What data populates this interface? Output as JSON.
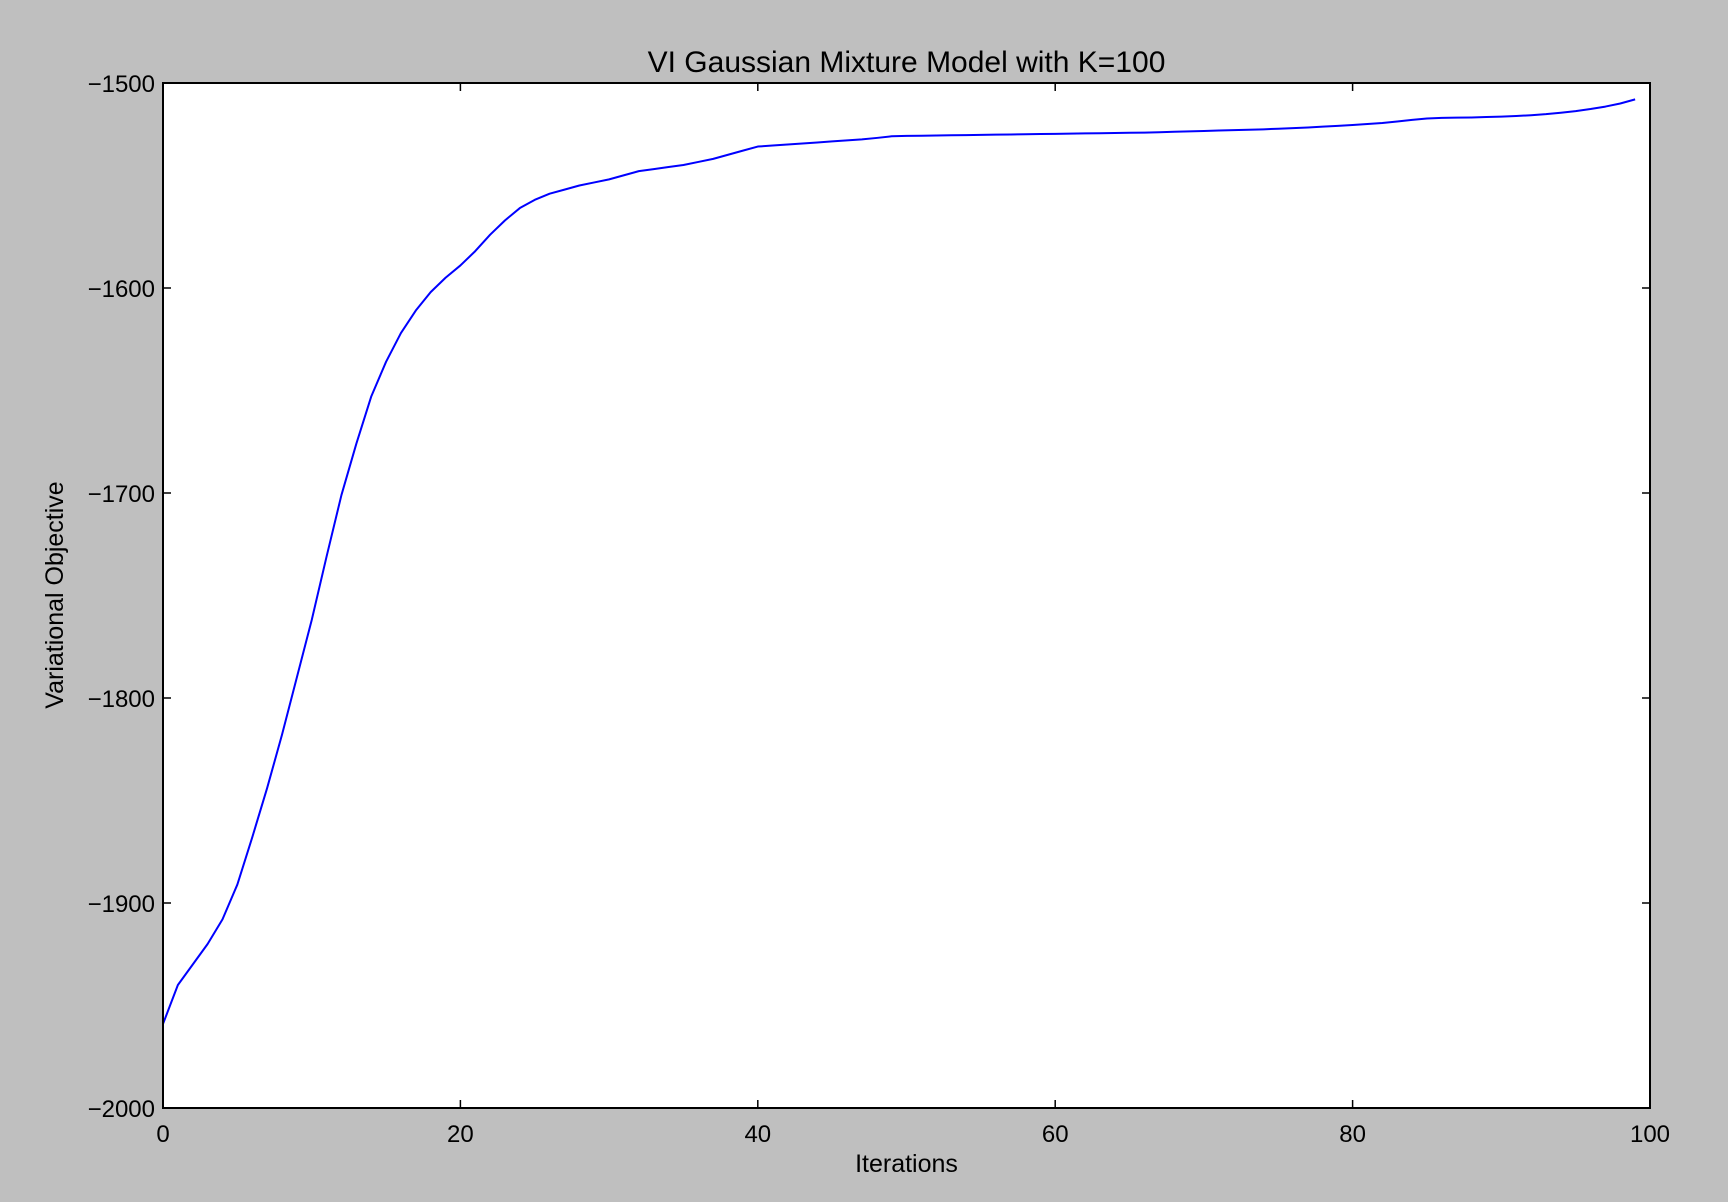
{
  "chart_data": {
    "type": "line",
    "title": "VI Gaussian Mixture Model with K=100",
    "xlabel": "Iterations",
    "ylabel": "Variational Objective",
    "xlim": [
      0,
      100
    ],
    "ylim": [
      -2000,
      -1500
    ],
    "xticks": [
      0,
      20,
      40,
      60,
      80,
      100
    ],
    "xtick_labels": [
      "0",
      "20",
      "40",
      "60",
      "80",
      "100"
    ],
    "yticks": [
      -2000,
      -1900,
      -1800,
      -1700,
      -1600,
      -1500
    ],
    "ytick_labels": [
      "−2000",
      "−1900",
      "−1800",
      "−1700",
      "−1600",
      "−1500"
    ],
    "grid": false,
    "legend": "none",
    "series": [
      {
        "color": "#0000ff",
        "x": [
          0,
          1,
          2,
          3,
          4,
          5,
          6,
          7,
          8,
          9,
          10,
          11,
          12,
          13,
          14,
          15,
          16,
          17,
          18,
          19,
          20,
          21,
          22,
          23,
          24,
          25,
          26,
          27,
          28,
          29,
          30,
          31,
          32,
          33,
          34,
          35,
          36,
          37,
          38,
          39,
          40,
          41,
          42,
          43,
          44,
          45,
          46,
          47,
          48,
          49,
          50,
          51,
          52,
          53,
          54,
          55,
          56,
          57,
          58,
          59,
          60,
          61,
          62,
          63,
          64,
          65,
          66,
          67,
          68,
          69,
          70,
          71,
          72,
          73,
          74,
          75,
          76,
          77,
          78,
          79,
          80,
          81,
          82,
          83,
          84,
          85,
          86,
          87,
          88,
          89,
          90,
          91,
          92,
          93,
          94,
          95,
          96,
          97,
          98,
          99
        ],
        "y": [
          -1959,
          -1940,
          -1930,
          -1920,
          -1908,
          -1891,
          -1868,
          -1844,
          -1818,
          -1790,
          -1762,
          -1731,
          -1701,
          -1676,
          -1653,
          -1636,
          -1622,
          -1611,
          -1602,
          -1595,
          -1589,
          -1582,
          -1574,
          -1567,
          -1561,
          -1557,
          -1554,
          -1552,
          -1550,
          -1548.5,
          -1547,
          -1545,
          -1543,
          -1542,
          -1541,
          -1540,
          -1538.5,
          -1537,
          -1535,
          -1533,
          -1531,
          -1530.5,
          -1530,
          -1529.5,
          -1529,
          -1528.5,
          -1528,
          -1527.5,
          -1526.8,
          -1526,
          -1525.8,
          -1525.7,
          -1525.6,
          -1525.5,
          -1525.4,
          -1525.3,
          -1525.2,
          -1525.1,
          -1525,
          -1524.9,
          -1524.8,
          -1524.7,
          -1524.6,
          -1524.5,
          -1524.4,
          -1524.3,
          -1524.2,
          -1524,
          -1523.8,
          -1523.6,
          -1523.4,
          -1523.2,
          -1523,
          -1522.8,
          -1522.6,
          -1522.3,
          -1522,
          -1521.7,
          -1521.3,
          -1520.9,
          -1520.5,
          -1520,
          -1519.5,
          -1518.8,
          -1518,
          -1517.3,
          -1517,
          -1516.9,
          -1516.8,
          -1516.6,
          -1516.4,
          -1516.1,
          -1515.7,
          -1515.2,
          -1514.5,
          -1513.7,
          -1512.7,
          -1511.5,
          -1510,
          -1508
        ]
      }
    ]
  }
}
